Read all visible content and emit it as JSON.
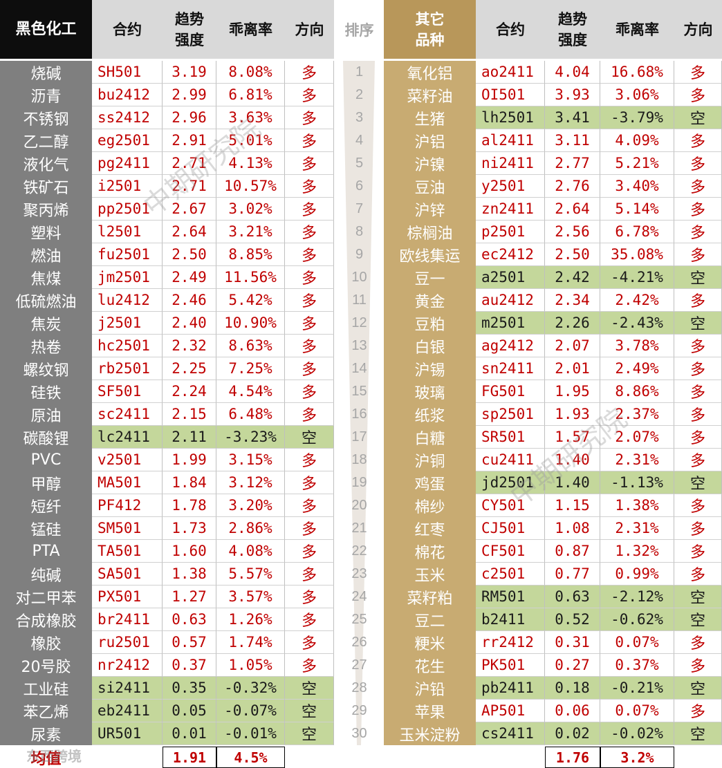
{
  "headers": {
    "left_category": "黑色化工",
    "contract": "合约",
    "strength": "趋势\n强度",
    "deviation": "乖离率",
    "direction": "方向",
    "rank": "排序",
    "right_category": "其它\n品种"
  },
  "left_rows": [
    {
      "name": "烧碱",
      "code": "SH501",
      "strength": "3.19",
      "deviation": "8.08%",
      "dir": "多"
    },
    {
      "name": "沥青",
      "code": "bu2412",
      "strength": "2.99",
      "deviation": "6.81%",
      "dir": "多"
    },
    {
      "name": "不锈钢",
      "code": "ss2412",
      "strength": "2.96",
      "deviation": "3.63%",
      "dir": "多"
    },
    {
      "name": "乙二醇",
      "code": "eg2501",
      "strength": "2.91",
      "deviation": "5.01%",
      "dir": "多"
    },
    {
      "name": "液化气",
      "code": "pg2411",
      "strength": "2.71",
      "deviation": "4.13%",
      "dir": "多"
    },
    {
      "name": "铁矿石",
      "code": "i2501",
      "strength": "2.71",
      "deviation": "10.57%",
      "dir": "多"
    },
    {
      "name": "聚丙烯",
      "code": "pp2501",
      "strength": "2.67",
      "deviation": "3.02%",
      "dir": "多"
    },
    {
      "name": "塑料",
      "code": "l2501",
      "strength": "2.64",
      "deviation": "3.21%",
      "dir": "多"
    },
    {
      "name": "燃油",
      "code": "fu2501",
      "strength": "2.50",
      "deviation": "8.85%",
      "dir": "多"
    },
    {
      "name": "焦煤",
      "code": "jm2501",
      "strength": "2.49",
      "deviation": "11.56%",
      "dir": "多"
    },
    {
      "name": "低硫燃油",
      "code": "lu2412",
      "strength": "2.46",
      "deviation": "5.42%",
      "dir": "多"
    },
    {
      "name": "焦炭",
      "code": "j2501",
      "strength": "2.40",
      "deviation": "10.90%",
      "dir": "多"
    },
    {
      "name": "热卷",
      "code": "hc2501",
      "strength": "2.32",
      "deviation": "8.63%",
      "dir": "多"
    },
    {
      "name": "螺纹钢",
      "code": "rb2501",
      "strength": "2.25",
      "deviation": "7.25%",
      "dir": "多"
    },
    {
      "name": "硅铁",
      "code": "SF501",
      "strength": "2.24",
      "deviation": "4.54%",
      "dir": "多"
    },
    {
      "name": "原油",
      "code": "sc2411",
      "strength": "2.15",
      "deviation": "6.48%",
      "dir": "多"
    },
    {
      "name": "碳酸锂",
      "code": "lc2411",
      "strength": "2.11",
      "deviation": "-3.23%",
      "dir": "空"
    },
    {
      "name": "PVC",
      "code": "v2501",
      "strength": "1.99",
      "deviation": "3.15%",
      "dir": "多"
    },
    {
      "name": "甲醇",
      "code": "MA501",
      "strength": "1.84",
      "deviation": "3.12%",
      "dir": "多"
    },
    {
      "name": "短纤",
      "code": "PF412",
      "strength": "1.78",
      "deviation": "3.20%",
      "dir": "多"
    },
    {
      "name": "锰硅",
      "code": "SM501",
      "strength": "1.73",
      "deviation": "2.86%",
      "dir": "多"
    },
    {
      "name": "PTA",
      "code": "TA501",
      "strength": "1.60",
      "deviation": "4.08%",
      "dir": "多"
    },
    {
      "name": "纯碱",
      "code": "SA501",
      "strength": "1.38",
      "deviation": "5.57%",
      "dir": "多"
    },
    {
      "name": "对二甲苯",
      "code": "PX501",
      "strength": "1.27",
      "deviation": "3.57%",
      "dir": "多"
    },
    {
      "name": "合成橡胶",
      "code": "br2411",
      "strength": "0.63",
      "deviation": "1.26%",
      "dir": "多"
    },
    {
      "name": "橡胶",
      "code": "ru2501",
      "strength": "0.57",
      "deviation": "1.74%",
      "dir": "多"
    },
    {
      "name": "20号胶",
      "code": "nr2412",
      "strength": "0.37",
      "deviation": "1.05%",
      "dir": "多"
    },
    {
      "name": "工业硅",
      "code": "si2411",
      "strength": "0.35",
      "deviation": "-0.32%",
      "dir": "空"
    },
    {
      "name": "苯乙烯",
      "code": "eb2411",
      "strength": "0.05",
      "deviation": "-0.07%",
      "dir": "空"
    },
    {
      "name": "尿素",
      "code": "UR501",
      "strength": "0.01",
      "deviation": "-0.01%",
      "dir": "空"
    }
  ],
  "right_rows": [
    {
      "name": "氧化铝",
      "code": "ao2411",
      "strength": "4.04",
      "deviation": "16.68%",
      "dir": "多"
    },
    {
      "name": "菜籽油",
      "code": "OI501",
      "strength": "3.93",
      "deviation": "3.06%",
      "dir": "多"
    },
    {
      "name": "生猪",
      "code": "lh2501",
      "strength": "3.41",
      "deviation": "-3.79%",
      "dir": "空"
    },
    {
      "name": "沪铝",
      "code": "al2411",
      "strength": "3.11",
      "deviation": "4.09%",
      "dir": "多"
    },
    {
      "name": "沪镍",
      "code": "ni2411",
      "strength": "2.77",
      "deviation": "5.21%",
      "dir": "多"
    },
    {
      "name": "豆油",
      "code": "y2501",
      "strength": "2.76",
      "deviation": "3.40%",
      "dir": "多"
    },
    {
      "name": "沪锌",
      "code": "zn2411",
      "strength": "2.64",
      "deviation": "5.14%",
      "dir": "多"
    },
    {
      "name": "棕榈油",
      "code": "p2501",
      "strength": "2.56",
      "deviation": "6.78%",
      "dir": "多"
    },
    {
      "name": "欧线集运",
      "code": "ec2412",
      "strength": "2.50",
      "deviation": "35.08%",
      "dir": "多"
    },
    {
      "name": "豆一",
      "code": "a2501",
      "strength": "2.42",
      "deviation": "-4.21%",
      "dir": "空"
    },
    {
      "name": "黄金",
      "code": "au2412",
      "strength": "2.34",
      "deviation": "2.42%",
      "dir": "多"
    },
    {
      "name": "豆粕",
      "code": "m2501",
      "strength": "2.26",
      "deviation": "-2.43%",
      "dir": "空"
    },
    {
      "name": "白银",
      "code": "ag2412",
      "strength": "2.07",
      "deviation": "3.78%",
      "dir": "多"
    },
    {
      "name": "沪锡",
      "code": "sn2411",
      "strength": "2.01",
      "deviation": "2.49%",
      "dir": "多"
    },
    {
      "name": "玻璃",
      "code": "FG501",
      "strength": "1.95",
      "deviation": "8.86%",
      "dir": "多"
    },
    {
      "name": "纸浆",
      "code": "sp2501",
      "strength": "1.93",
      "deviation": "2.37%",
      "dir": "多"
    },
    {
      "name": "白糖",
      "code": "SR501",
      "strength": "1.57",
      "deviation": "2.07%",
      "dir": "多"
    },
    {
      "name": "沪铜",
      "code": "cu2411",
      "strength": "1.40",
      "deviation": "2.31%",
      "dir": "多"
    },
    {
      "name": "鸡蛋",
      "code": "jd2501",
      "strength": "1.40",
      "deviation": "-1.13%",
      "dir": "空"
    },
    {
      "name": "棉纱",
      "code": "CY501",
      "strength": "1.15",
      "deviation": "1.38%",
      "dir": "多"
    },
    {
      "name": "红枣",
      "code": "CJ501",
      "strength": "1.08",
      "deviation": "2.31%",
      "dir": "多"
    },
    {
      "name": "棉花",
      "code": "CF501",
      "strength": "0.87",
      "deviation": "1.32%",
      "dir": "多"
    },
    {
      "name": "玉米",
      "code": "c2501",
      "strength": "0.77",
      "deviation": "0.99%",
      "dir": "多"
    },
    {
      "name": "菜籽粕",
      "code": "RM501",
      "strength": "0.63",
      "deviation": "-2.12%",
      "dir": "空"
    },
    {
      "name": "豆二",
      "code": "b2411",
      "strength": "0.52",
      "deviation": "-0.62%",
      "dir": "空"
    },
    {
      "name": "粳米",
      "code": "rr2412",
      "strength": "0.31",
      "deviation": "0.07%",
      "dir": "多"
    },
    {
      "name": "花生",
      "code": "PK501",
      "strength": "0.27",
      "deviation": "0.37%",
      "dir": "多"
    },
    {
      "name": "沪铅",
      "code": "pb2411",
      "strength": "0.18",
      "deviation": "-0.21%",
      "dir": "空"
    },
    {
      "name": "苹果",
      "code": "AP501",
      "strength": "0.06",
      "deviation": "0.07%",
      "dir": "多"
    },
    {
      "name": "玉米淀粉",
      "code": "cs2411",
      "strength": "0.02",
      "deviation": "-0.02%",
      "dir": "空"
    }
  ],
  "ranks": [
    "1",
    "2",
    "3",
    "4",
    "5",
    "6",
    "7",
    "8",
    "9",
    "10",
    "11",
    "12",
    "13",
    "14",
    "15",
    "16",
    "17",
    "18",
    "19",
    "20",
    "21",
    "22",
    "23",
    "24",
    "25",
    "26",
    "27",
    "28",
    "29",
    "30"
  ],
  "footer": {
    "label": "均值",
    "left_strength": "1.91",
    "left_deviation": "4.5%",
    "right_strength": "1.76",
    "right_deviation": "3.2%"
  },
  "watermark": "中期研究院",
  "corner_logo": "东西跨境",
  "colors": {
    "long": "#c00000",
    "short_bg": "#c4d79b",
    "left_name_bg": "#7f7f7f",
    "right_name_bg": "#c8ab72",
    "right_header_bg": "#b8975a"
  }
}
